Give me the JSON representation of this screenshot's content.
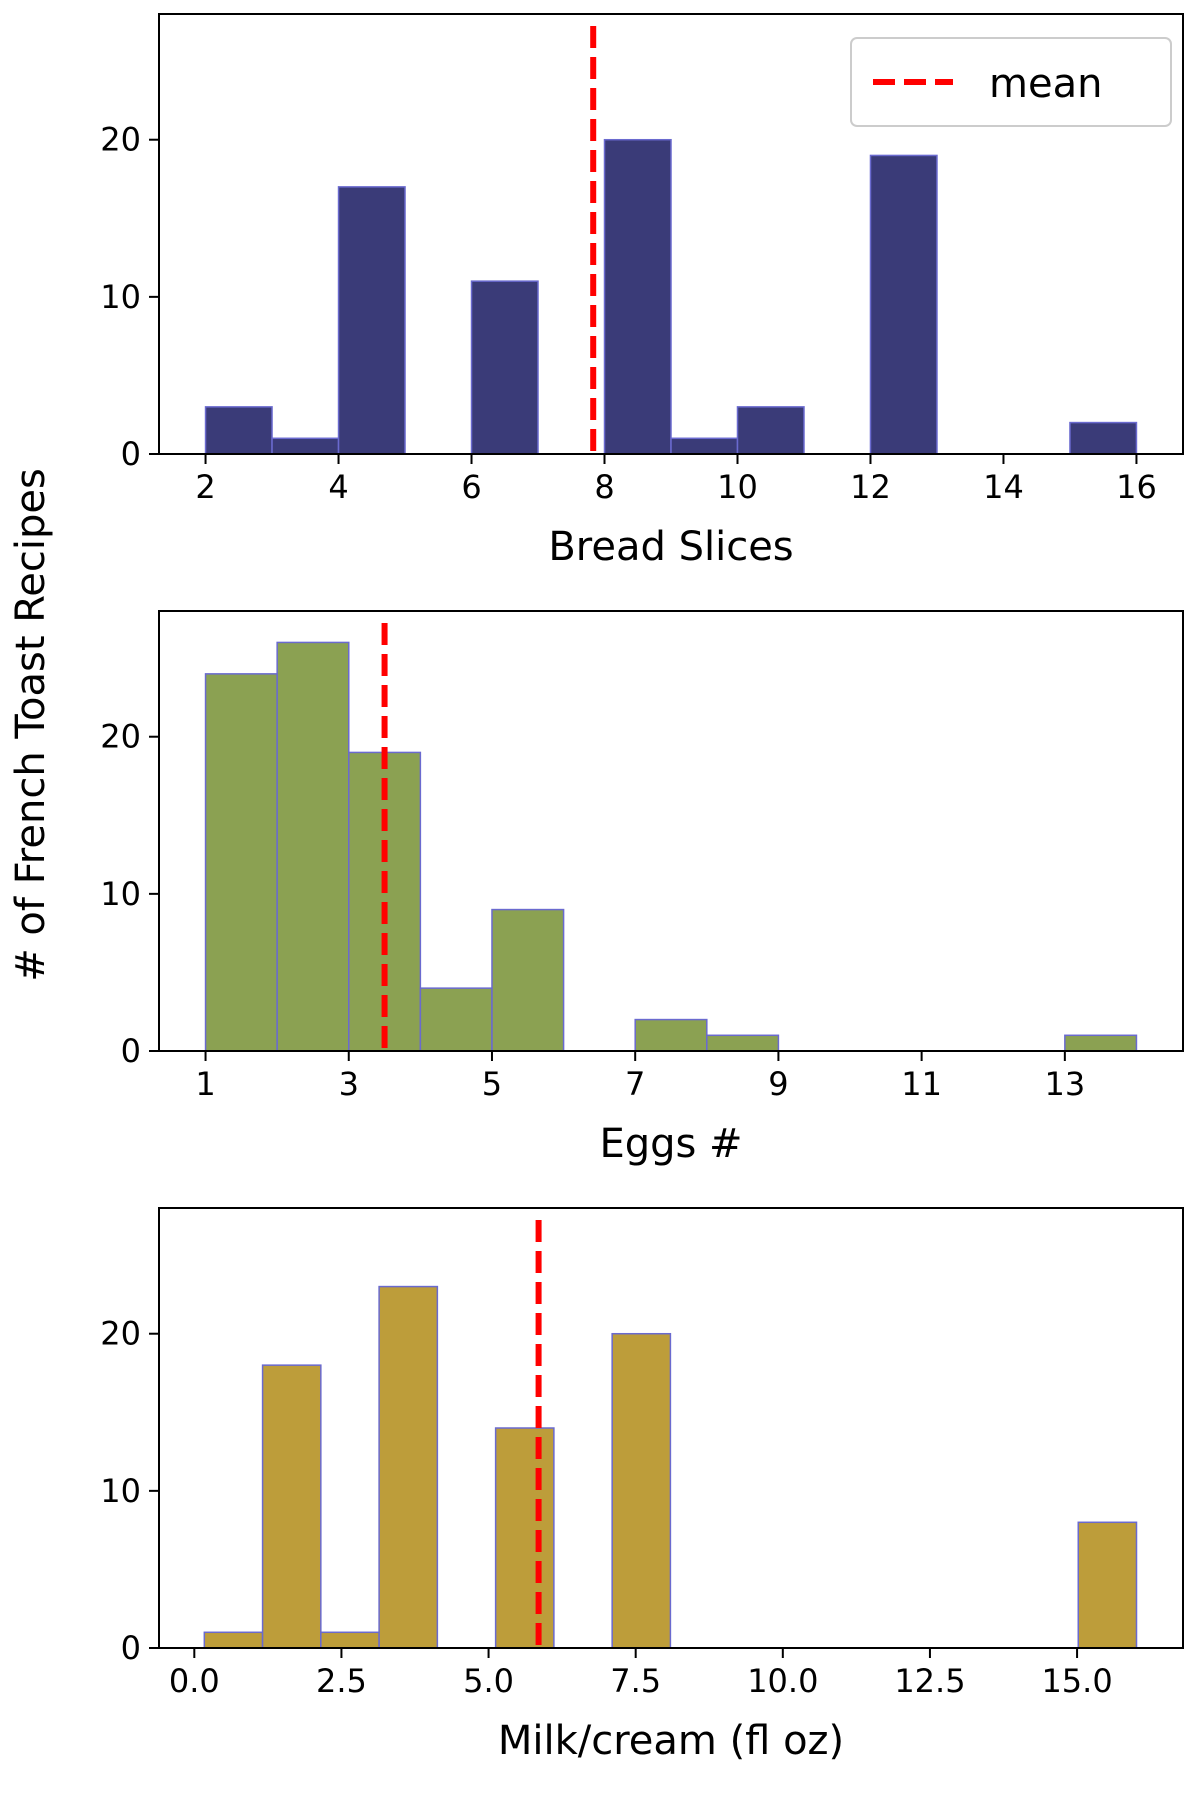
{
  "figure": {
    "ylabel": "# of French Toast Recipes"
  },
  "chart_data": [
    {
      "type": "bar",
      "xlabel": "Bread Slices",
      "color": "#3a3b78",
      "edge_color": "#6a6acf",
      "xlim": [
        1.3,
        16.7
      ],
      "ylim": [
        0,
        28
      ],
      "xticks": [
        2,
        4,
        6,
        8,
        10,
        12,
        14,
        16
      ],
      "xtick_labels": [
        "2",
        "4",
        "6",
        "8",
        "10",
        "12",
        "14",
        "16"
      ],
      "yticks": [
        0,
        10,
        20
      ],
      "ytick_labels": [
        "0",
        "10",
        "20"
      ],
      "bins": [
        [
          2,
          3
        ],
        [
          3,
          4
        ],
        [
          4,
          5
        ],
        [
          5,
          6
        ],
        [
          6,
          7
        ],
        [
          7,
          8
        ],
        [
          8,
          9
        ],
        [
          9,
          10
        ],
        [
          10,
          11
        ],
        [
          11,
          12
        ],
        [
          12,
          13
        ],
        [
          13,
          14
        ],
        [
          14,
          15
        ],
        [
          15,
          16
        ]
      ],
      "values": [
        3,
        1,
        17,
        0,
        11,
        0,
        20,
        1,
        3,
        0,
        19,
        0,
        0,
        2
      ],
      "mean": 7.83,
      "mean_color": "#ff0000",
      "legend": {
        "label": "mean",
        "placement": "upper right"
      }
    },
    {
      "type": "bar",
      "xlabel": "Eggs #",
      "color": "#8ba152",
      "edge_color": "#6a6acf",
      "xlim": [
        0.35,
        14.65
      ],
      "ylim": [
        0,
        28
      ],
      "xticks": [
        1,
        3,
        5,
        7,
        9,
        11,
        13
      ],
      "xtick_labels": [
        "1",
        "3",
        "5",
        "7",
        "9",
        "11",
        "13"
      ],
      "yticks": [
        0,
        10,
        20
      ],
      "ytick_labels": [
        "0",
        "10",
        "20"
      ],
      "bins": [
        [
          1,
          2
        ],
        [
          2,
          3
        ],
        [
          3,
          4
        ],
        [
          4,
          5
        ],
        [
          5,
          6
        ],
        [
          6,
          7
        ],
        [
          7,
          8
        ],
        [
          8,
          9
        ],
        [
          9,
          10
        ],
        [
          10,
          11
        ],
        [
          11,
          12
        ],
        [
          12,
          13
        ],
        [
          13,
          14
        ]
      ],
      "values": [
        24,
        26,
        19,
        4,
        9,
        0,
        2,
        1,
        0,
        0,
        0,
        0,
        1
      ],
      "mean": 3.5,
      "mean_color": "#ff0000"
    },
    {
      "type": "bar",
      "xlabel": "Milk/cream (fl oz)",
      "color": "#bd9d3a",
      "edge_color": "#6a6acf",
      "xlim": [
        -0.6,
        16.8
      ],
      "ylim": [
        0,
        28
      ],
      "xticks": [
        0,
        2.5,
        5,
        7.5,
        10,
        12.5,
        15
      ],
      "xtick_labels": [
        "0.0",
        "2.5",
        "5.0",
        "7.5",
        "10.0",
        "12.5",
        "15.0"
      ],
      "yticks": [
        0,
        10,
        20
      ],
      "ytick_labels": [
        "0",
        "10",
        "20"
      ],
      "bins": [
        [
          0.17,
          1.16
        ],
        [
          1.16,
          2.15
        ],
        [
          2.15,
          3.14
        ],
        [
          3.14,
          4.13
        ],
        [
          4.13,
          5.12
        ],
        [
          5.12,
          6.11
        ],
        [
          6.11,
          7.1
        ],
        [
          7.1,
          8.09
        ],
        [
          8.09,
          9.08
        ],
        [
          9.08,
          10.07
        ],
        [
          10.07,
          11.06
        ],
        [
          11.06,
          12.05
        ],
        [
          12.05,
          13.04
        ],
        [
          13.04,
          14.03
        ],
        [
          14.03,
          15.02
        ],
        [
          15.02,
          16.01
        ]
      ],
      "values": [
        1,
        18,
        1,
        23,
        0,
        14,
        0,
        20,
        0,
        0,
        0,
        0,
        0,
        0,
        0,
        8
      ],
      "mean": 5.85,
      "mean_color": "#ff0000"
    }
  ]
}
